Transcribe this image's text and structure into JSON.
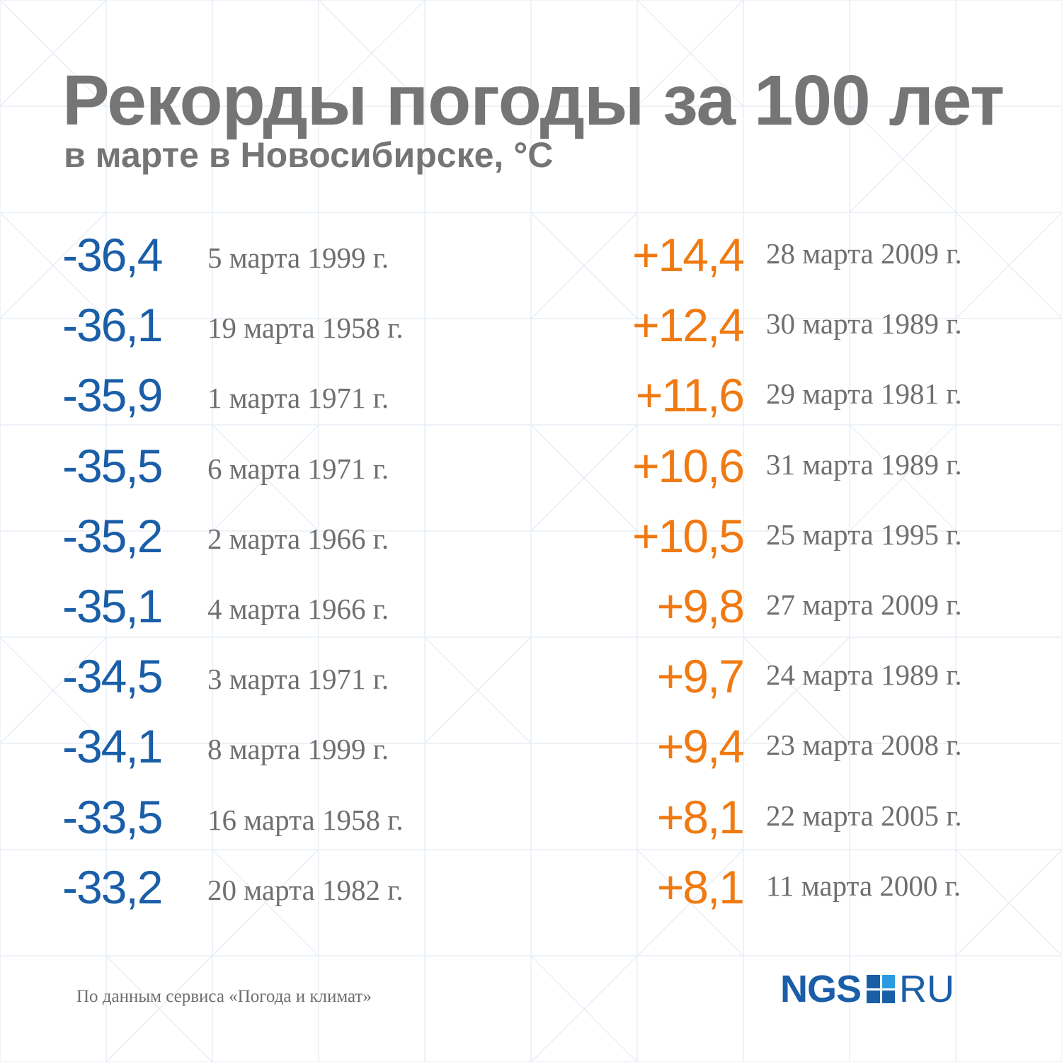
{
  "title": "Рекорды погоды за 100 лет",
  "subtitle": "в марте в Новосибирске, °С",
  "cold_records": [
    {
      "value": "-36,4",
      "date": "5 марта 1999 г."
    },
    {
      "value": "-36,1",
      "date": "19 марта 1958 г."
    },
    {
      "value": "-35,9",
      "date": "1 марта 1971 г."
    },
    {
      "value": "-35,5",
      "date": "6 марта 1971 г."
    },
    {
      "value": "-35,2",
      "date": "2 марта 1966 г."
    },
    {
      "value": "-35,1",
      "date": "4 марта 1966 г."
    },
    {
      "value": "-34,5",
      "date": "3 марта 1971 г."
    },
    {
      "value": "-34,1",
      "date": "8 марта 1999 г."
    },
    {
      "value": "-33,5",
      "date": "16 марта 1958 г."
    },
    {
      "value": "-33,2",
      "date": "20 марта 1982 г."
    }
  ],
  "warm_records": [
    {
      "value": "+14,4",
      "date": "28 марта 2009 г."
    },
    {
      "value": "+12,4",
      "date": "30 марта 1989 г."
    },
    {
      "value": "+11,6",
      "date": "29 марта 1981 г."
    },
    {
      "value": "+10,6",
      "date": "31 марта 1989 г."
    },
    {
      "value": "+10,5",
      "date": "25 марта 1995 г."
    },
    {
      "value": "+9,8",
      "date": "27 марта 2009 г."
    },
    {
      "value": "+9,7",
      "date": "24 марта 1989 г."
    },
    {
      "value": "+9,4",
      "date": "23 марта 2008 г."
    },
    {
      "value": "+8,1",
      "date": "22 марта 2005 г."
    },
    {
      "value": "+8,1",
      "date": "11 марта 2000 г."
    }
  ],
  "source": "По данным сервиса «Погода и климат»",
  "logo": {
    "left": "NGS",
    "right": "RU"
  },
  "colors": {
    "cold": "#1a5ea8",
    "warm": "#f07a12",
    "text": "#757575",
    "pattern": "#e8eef5"
  }
}
